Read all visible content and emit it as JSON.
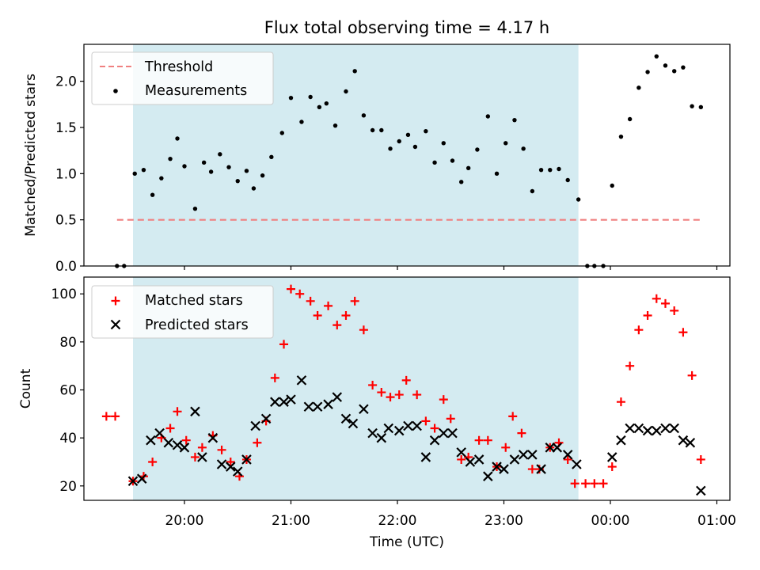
{
  "chart_data": {
    "title": "Flux total observing time = 4.17 h",
    "xlabel": "Time (UTC)",
    "x_ticks": [
      "20:00",
      "21:00",
      "22:00",
      "23:00",
      "00:00",
      "01:00"
    ],
    "shaded_interval": [
      "19:31",
      "23:42"
    ],
    "colors": {
      "shade": "#d4ebf1",
      "threshold": "#f08080",
      "measurements": "#000000",
      "matched": "#ff0000",
      "predicted": "#000000"
    },
    "panels": [
      {
        "type": "scatter",
        "ylabel": "Matched/Predicted stars",
        "ylim": [
          0,
          2.4
        ],
        "y_ticks": [
          "0.0",
          "0.5",
          "1.0",
          "1.5",
          "2.0"
        ],
        "legend_position": "upper-left",
        "legend": {
          "threshold": "Threshold",
          "measurements": "Measurements"
        },
        "threshold": {
          "value": 0.5,
          "from": "19:22",
          "to": "00:51"
        },
        "series": [
          {
            "name": "Measurements",
            "marker": "dot",
            "points": [
              [
                "19:22",
                0.0
              ],
              [
                "19:26",
                0.0
              ],
              [
                "19:32",
                1.0
              ],
              [
                "19:37",
                1.04
              ],
              [
                "19:42",
                0.77
              ],
              [
                "19:47",
                0.95
              ],
              [
                "19:52",
                1.16
              ],
              [
                "19:56",
                1.38
              ],
              [
                "20:00",
                1.08
              ],
              [
                "20:06",
                0.62
              ],
              [
                "20:11",
                1.12
              ],
              [
                "20:15",
                1.02
              ],
              [
                "20:20",
                1.21
              ],
              [
                "20:25",
                1.07
              ],
              [
                "20:30",
                0.92
              ],
              [
                "20:35",
                1.03
              ],
              [
                "20:39",
                0.84
              ],
              [
                "20:44",
                0.98
              ],
              [
                "20:49",
                1.18
              ],
              [
                "20:55",
                1.44
              ],
              [
                "21:00",
                1.82
              ],
              [
                "21:06",
                1.56
              ],
              [
                "21:11",
                1.83
              ],
              [
                "21:16",
                1.72
              ],
              [
                "21:20",
                1.76
              ],
              [
                "21:25",
                1.52
              ],
              [
                "21:31",
                1.89
              ],
              [
                "21:36",
                2.11
              ],
              [
                "21:41",
                1.63
              ],
              [
                "21:46",
                1.47
              ],
              [
                "21:51",
                1.47
              ],
              [
                "21:56",
                1.27
              ],
              [
                "22:01",
                1.35
              ],
              [
                "22:06",
                1.42
              ],
              [
                "22:10",
                1.29
              ],
              [
                "22:16",
                1.46
              ],
              [
                "22:21",
                1.12
              ],
              [
                "22:26",
                1.33
              ],
              [
                "22:31",
                1.14
              ],
              [
                "22:36",
                0.91
              ],
              [
                "22:40",
                1.06
              ],
              [
                "22:45",
                1.26
              ],
              [
                "22:51",
                1.62
              ],
              [
                "22:56",
                1.0
              ],
              [
                "23:01",
                1.33
              ],
              [
                "23:06",
                1.58
              ],
              [
                "23:11",
                1.27
              ],
              [
                "23:16",
                0.81
              ],
              [
                "23:21",
                1.04
              ],
              [
                "23:26",
                1.04
              ],
              [
                "23:31",
                1.05
              ],
              [
                "23:36",
                0.93
              ],
              [
                "23:42",
                0.72
              ],
              [
                "23:47",
                0.0
              ],
              [
                "23:51",
                0.0
              ],
              [
                "23:56",
                0.0
              ],
              [
                "00:01",
                0.87
              ],
              [
                "00:06",
                1.4
              ],
              [
                "00:11",
                1.59
              ],
              [
                "00:16",
                1.93
              ],
              [
                "00:21",
                2.1
              ],
              [
                "00:26",
                2.27
              ],
              [
                "00:31",
                2.17
              ],
              [
                "00:36",
                2.11
              ],
              [
                "00:41",
                2.15
              ],
              [
                "00:46",
                1.73
              ],
              [
                "00:51",
                1.72
              ]
            ]
          }
        ]
      },
      {
        "type": "scatter",
        "ylabel": "Count",
        "ylim": [
          14,
          107
        ],
        "y_ticks": [
          "20",
          "40",
          "60",
          "80",
          "100"
        ],
        "legend_position": "upper-left",
        "legend": {
          "matched": "Matched stars",
          "predicted": "Predicted stars"
        },
        "series": [
          {
            "name": "Matched stars",
            "marker": "plus",
            "points": [
              [
                "19:16",
                49
              ],
              [
                "19:21",
                49
              ],
              [
                "19:31",
                22
              ],
              [
                "19:37",
                24
              ],
              [
                "19:42",
                30
              ],
              [
                "19:47",
                40
              ],
              [
                "19:52",
                44
              ],
              [
                "19:56",
                51
              ],
              [
                "20:01",
                39
              ],
              [
                "20:06",
                32
              ],
              [
                "20:10",
                36
              ],
              [
                "20:16",
                41
              ],
              [
                "20:21",
                35
              ],
              [
                "20:26",
                30
              ],
              [
                "20:31",
                24
              ],
              [
                "20:35",
                31
              ],
              [
                "20:41",
                38
              ],
              [
                "20:46",
                47
              ],
              [
                "20:51",
                65
              ],
              [
                "20:56",
                79
              ],
              [
                "21:00",
                102
              ],
              [
                "21:05",
                100
              ],
              [
                "21:11",
                97
              ],
              [
                "21:15",
                91
              ],
              [
                "21:21",
                95
              ],
              [
                "21:26",
                87
              ],
              [
                "21:31",
                91
              ],
              [
                "21:36",
                97
              ],
              [
                "21:41",
                85
              ],
              [
                "21:46",
                62
              ],
              [
                "21:51",
                59
              ],
              [
                "21:56",
                57
              ],
              [
                "22:01",
                58
              ],
              [
                "22:05",
                64
              ],
              [
                "22:11",
                58
              ],
              [
                "22:16",
                47
              ],
              [
                "22:21",
                44
              ],
              [
                "22:26",
                56
              ],
              [
                "22:30",
                48
              ],
              [
                "22:36",
                31
              ],
              [
                "22:40",
                32
              ],
              [
                "22:46",
                39
              ],
              [
                "22:51",
                39
              ],
              [
                "22:56",
                28
              ],
              [
                "23:01",
                36
              ],
              [
                "23:05",
                49
              ],
              [
                "23:10",
                42
              ],
              [
                "23:16",
                27
              ],
              [
                "23:20",
                27
              ],
              [
                "23:26",
                36
              ],
              [
                "23:31",
                38
              ],
              [
                "23:36",
                31
              ],
              [
                "23:40",
                21
              ],
              [
                "23:46",
                21
              ],
              [
                "23:51",
                21
              ],
              [
                "23:56",
                21
              ],
              [
                "00:01",
                28
              ],
              [
                "00:06",
                55
              ],
              [
                "00:11",
                70
              ],
              [
                "00:16",
                85
              ],
              [
                "00:21",
                91
              ],
              [
                "00:26",
                98
              ],
              [
                "00:31",
                96
              ],
              [
                "00:36",
                93
              ],
              [
                "00:41",
                84
              ],
              [
                "00:46",
                66
              ],
              [
                "00:51",
                31
              ]
            ]
          },
          {
            "name": "Predicted stars",
            "marker": "x",
            "points": [
              [
                "19:31",
                22
              ],
              [
                "19:36",
                23
              ],
              [
                "19:41",
                39
              ],
              [
                "19:46",
                42
              ],
              [
                "19:51",
                38
              ],
              [
                "19:56",
                37
              ],
              [
                "20:00",
                36
              ],
              [
                "20:06",
                51
              ],
              [
                "20:10",
                32
              ],
              [
                "20:16",
                40
              ],
              [
                "20:21",
                29
              ],
              [
                "20:26",
                28
              ],
              [
                "20:30",
                26
              ],
              [
                "20:35",
                31
              ],
              [
                "20:40",
                45
              ],
              [
                "20:46",
                48
              ],
              [
                "20:51",
                55
              ],
              [
                "20:56",
                55
              ],
              [
                "21:00",
                56
              ],
              [
                "21:06",
                64
              ],
              [
                "21:10",
                53
              ],
              [
                "21:15",
                53
              ],
              [
                "21:21",
                54
              ],
              [
                "21:26",
                57
              ],
              [
                "21:31",
                48
              ],
              [
                "21:35",
                46
              ],
              [
                "21:41",
                52
              ],
              [
                "21:46",
                42
              ],
              [
                "21:51",
                40
              ],
              [
                "21:55",
                44
              ],
              [
                "22:01",
                43
              ],
              [
                "22:06",
                45
              ],
              [
                "22:11",
                45
              ],
              [
                "22:16",
                32
              ],
              [
                "22:21",
                39
              ],
              [
                "22:26",
                42
              ],
              [
                "22:31",
                42
              ],
              [
                "22:36",
                34
              ],
              [
                "22:41",
                30
              ],
              [
                "22:46",
                31
              ],
              [
                "22:51",
                24
              ],
              [
                "22:56",
                28
              ],
              [
                "23:00",
                27
              ],
              [
                "23:06",
                31
              ],
              [
                "23:11",
                33
              ],
              [
                "23:16",
                33
              ],
              [
                "23:21",
                27
              ],
              [
                "23:26",
                36
              ],
              [
                "23:30",
                36
              ],
              [
                "23:36",
                33
              ],
              [
                "23:41",
                29
              ],
              [
                "00:01",
                32
              ],
              [
                "00:06",
                39
              ],
              [
                "00:11",
                44
              ],
              [
                "00:16",
                44
              ],
              [
                "00:21",
                43
              ],
              [
                "00:26",
                43
              ],
              [
                "00:31",
                44
              ],
              [
                "00:36",
                44
              ],
              [
                "00:41",
                39
              ],
              [
                "00:45",
                38
              ],
              [
                "00:51",
                18
              ]
            ]
          }
        ]
      }
    ]
  }
}
